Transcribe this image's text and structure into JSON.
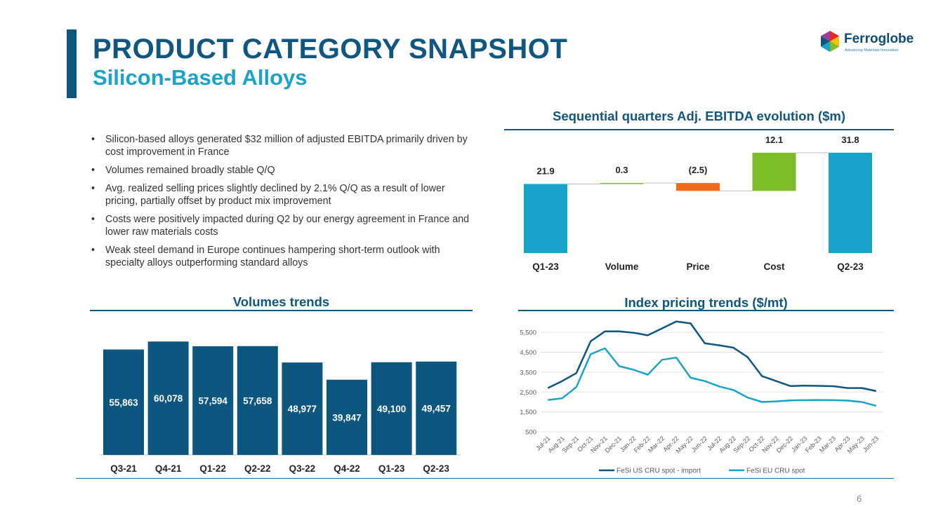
{
  "header": {
    "title": "PRODUCT CATEGORY SNAPSHOT",
    "subtitle": "Silicon-Based Alloys"
  },
  "logo": {
    "name": "Ferroglobe",
    "tagline": "Advancing Materials Innovation"
  },
  "bullets": [
    "Silicon-based alloys generated $32 million of adjusted EBITDA primarily driven by cost improvement in France",
    "Volumes remained broadly stable Q/Q",
    "Avg. realized selling prices slightly declined by 2.1% Q/Q as a result of lower pricing, partially offset by product mix improvement",
    "Costs were positively impacted during Q2 by our energy agreement in France and lower raw materials costs",
    "Weak steel demand in Europe continues hampering short-term outlook with specialty alloys outperforming standard alloys"
  ],
  "bullet_symbol": "•",
  "page_number": "6",
  "colors": {
    "navy": "#0f5680",
    "teal": "#1aa3c8",
    "green": "#7cbd2a",
    "orange": "#f26a1b",
    "bar_navy": "#0c5680"
  },
  "chart_data": [
    {
      "type": "bar",
      "subtype": "waterfall",
      "title": "Sequential quarters Adj. EBITDA evolution ($m)",
      "categories": [
        "Q1-23",
        "Volume",
        "Price",
        "Cost",
        "Q2-23"
      ],
      "values": [
        21.9,
        0.3,
        -2.5,
        12.1,
        31.8
      ],
      "labels": [
        "21.9",
        "0.3",
        "(2.5)",
        "12.1",
        "31.8"
      ],
      "kinds": [
        "total",
        "delta",
        "delta",
        "delta",
        "total"
      ],
      "colors": [
        "#1aa3c8",
        "#7cbd2a",
        "#f26a1b",
        "#7cbd2a",
        "#1aa3c8"
      ]
    },
    {
      "type": "bar",
      "title": "Volumes trends",
      "categories": [
        "Q3-21",
        "Q4-21",
        "Q1-22",
        "Q2-22",
        "Q3-22",
        "Q4-22",
        "Q1-23",
        "Q2-23"
      ],
      "values": [
        55863,
        60078,
        57594,
        57658,
        48977,
        39847,
        49100,
        49457
      ],
      "labels": [
        "55,863",
        "60,078",
        "57,594",
        "57,658",
        "48,977",
        "39,847",
        "49,100",
        "49,457"
      ],
      "ylim": [
        0,
        65000
      ]
    },
    {
      "type": "line",
      "title": "Index pricing trends ($/mt)",
      "x": [
        "Jul-21",
        "Aug-21",
        "Sep-21",
        "Oct-21",
        "Nov-21",
        "Dec-21",
        "Jan-22",
        "Feb-22",
        "Mar-22",
        "Apr-22",
        "May-22",
        "Jun-22",
        "Jul-22",
        "Aug-22",
        "Sep-22",
        "Oct-22",
        "Nov-22",
        "Dec-22",
        "Jan-23",
        "Feb-23",
        "Mar-23",
        "Apr-23",
        "May-23",
        "Jun-23"
      ],
      "yticks": [
        "500",
        "1,500",
        "2,500",
        "3,500",
        "4,500",
        "5,500"
      ],
      "ytick_values": [
        500,
        1500,
        2500,
        3500,
        4500,
        5500
      ],
      "ylim": [
        500,
        6000
      ],
      "grid": true,
      "legend_position": "bottom",
      "series": [
        {
          "name": "FeSi US CRU spot - import",
          "color": "#0c5680",
          "values": [
            2700,
            3050,
            3450,
            5050,
            5550,
            5550,
            5480,
            5350,
            5700,
            6050,
            5950,
            4950,
            4850,
            4730,
            4250,
            3300,
            3050,
            2800,
            2820,
            2810,
            2790,
            2700,
            2700,
            2550
          ]
        },
        {
          "name": "FeSi EU CRU spot",
          "color": "#1aa3c8",
          "values": [
            2100,
            2180,
            2750,
            4400,
            4700,
            3800,
            3620,
            3370,
            4120,
            4230,
            3220,
            3050,
            2780,
            2600,
            2220,
            2000,
            2030,
            2080,
            2090,
            2100,
            2090,
            2070,
            2000,
            1800
          ]
        }
      ]
    }
  ]
}
